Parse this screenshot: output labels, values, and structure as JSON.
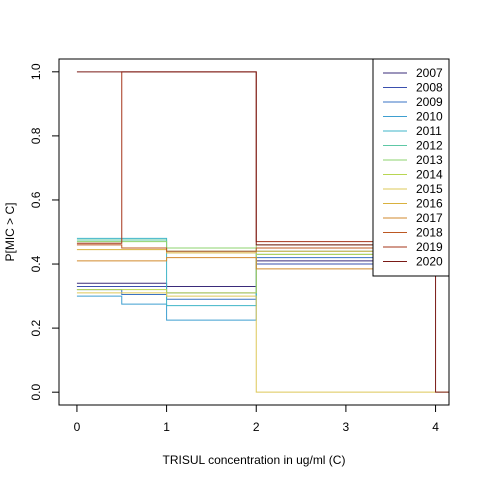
{
  "chart_data": {
    "type": "line",
    "step": true,
    "title": "",
    "xlabel": "TRISUL concentration in ug/ml (C)",
    "ylabel": "P[MIC > C]",
    "xlim": [
      -0.2,
      4.15
    ],
    "ylim": [
      -0.04,
      1.04
    ],
    "x_ticks": [
      0,
      1,
      2,
      3,
      4
    ],
    "x_tick_labels": [
      "0",
      "1",
      "2",
      "3",
      "4"
    ],
    "y_ticks": [
      0.0,
      0.2,
      0.4,
      0.6,
      0.8,
      1.0
    ],
    "y_tick_labels": [
      "0.0",
      "0.2",
      "0.4",
      "0.6",
      "0.8",
      "1.0"
    ],
    "grid": false,
    "legend_position": "top-right",
    "x_end": 4.15,
    "series": [
      {
        "name": "2007",
        "color": "#3a2b7a",
        "points": [
          [
            0,
            0.34
          ],
          [
            1,
            0.33
          ],
          [
            2,
            0.41
          ]
        ]
      },
      {
        "name": "2008",
        "color": "#3a4fae",
        "points": [
          [
            0,
            0.33
          ],
          [
            1,
            0.31
          ],
          [
            2,
            0.4
          ]
        ]
      },
      {
        "name": "2009",
        "color": "#3a73c4",
        "points": [
          [
            0,
            0.32
          ],
          [
            0.5,
            0.305
          ],
          [
            1,
            0.29
          ],
          [
            2,
            0.42
          ]
        ]
      },
      {
        "name": "2010",
        "color": "#3e9fd0",
        "points": [
          [
            0,
            0.3
          ],
          [
            0.5,
            0.275
          ],
          [
            1,
            0.225
          ],
          [
            2,
            0.43
          ]
        ]
      },
      {
        "name": "2011",
        "color": "#3fb5c8",
        "points": [
          [
            0,
            0.48
          ],
          [
            1,
            0.27
          ],
          [
            2,
            0.44
          ]
        ]
      },
      {
        "name": "2012",
        "color": "#5ec8a6",
        "points": [
          [
            0,
            0.475
          ],
          [
            1,
            0.44
          ],
          [
            2,
            0.45
          ]
        ]
      },
      {
        "name": "2013",
        "color": "#8ed36f",
        "points": [
          [
            0,
            0.47
          ],
          [
            1,
            0.45
          ],
          [
            2,
            0.46
          ]
        ]
      },
      {
        "name": "2014",
        "color": "#b8d652",
        "points": [
          [
            0,
            0.32
          ],
          [
            1,
            0.31
          ],
          [
            2,
            0.43
          ]
        ]
      },
      {
        "name": "2015",
        "color": "#ddc858",
        "points": [
          [
            0,
            0.31
          ],
          [
            1,
            0.3
          ],
          [
            2,
            0.0
          ]
        ]
      },
      {
        "name": "2016",
        "color": "#d9b13e",
        "points": [
          [
            0,
            0.445
          ],
          [
            1,
            0.435
          ],
          [
            2,
            0.44
          ]
        ]
      },
      {
        "name": "2017",
        "color": "#d28a2c",
        "points": [
          [
            0,
            0.41
          ],
          [
            1,
            0.42
          ],
          [
            2,
            0.385
          ]
        ]
      },
      {
        "name": "2018",
        "color": "#bc5822",
        "points": [
          [
            0,
            0.46
          ],
          [
            0.5,
            0.45
          ],
          [
            1,
            0.44
          ],
          [
            2,
            0.45
          ]
        ]
      },
      {
        "name": "2019",
        "color": "#a5341a",
        "points": [
          [
            0,
            0.465
          ],
          [
            0.5,
            1.0
          ],
          [
            2,
            0.47
          ]
        ]
      },
      {
        "name": "2020",
        "color": "#7a1a16",
        "points": [
          [
            0,
            1.0
          ],
          [
            2,
            0.46
          ],
          [
            4,
            0.0
          ]
        ]
      }
    ]
  }
}
